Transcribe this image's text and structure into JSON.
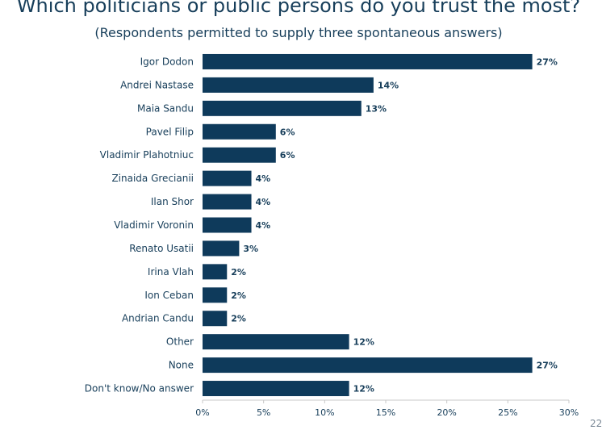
{
  "title": "Which politicians or public persons do you trust the most?",
  "subtitle": "(Respondents permitted to supply three spontaneous answers)",
  "page_number": "22",
  "colors": {
    "bar": "#0e3a5b",
    "text": "#173e5a",
    "axis": "#c8c8c8"
  },
  "chart_data": {
    "type": "bar",
    "orientation": "horizontal",
    "categories": [
      "Igor Dodon",
      "Andrei Nastase",
      "Maia Sandu",
      "Pavel Filip",
      "Vladimir Plahotniuc",
      "Zinaida Grecianii",
      "Ilan Shor",
      "Vladimir Voronin",
      "Renato Usatii",
      "Irina Vlah",
      "Ion Ceban",
      "Andrian Candu",
      "Other",
      "None",
      "Don't know/No answer"
    ],
    "values": [
      27,
      14,
      13,
      6,
      6,
      4,
      4,
      4,
      3,
      2,
      2,
      2,
      12,
      27,
      12
    ],
    "value_labels": [
      "27%",
      "14%",
      "13%",
      "6%",
      "6%",
      "4%",
      "4%",
      "4%",
      "3%",
      "2%",
      "2%",
      "2%",
      "12%",
      "27%",
      "12%"
    ],
    "xlim": [
      0,
      30
    ],
    "xticks": [
      0,
      5,
      10,
      15,
      20,
      25,
      30
    ],
    "xtick_labels": [
      "0%",
      "5%",
      "10%",
      "15%",
      "20%",
      "25%",
      "30%"
    ],
    "grid": false,
    "legend": "none"
  }
}
